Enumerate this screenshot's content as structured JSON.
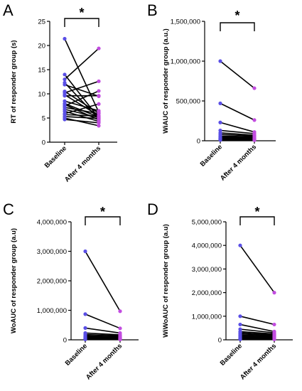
{
  "chart_data": [
    {
      "type": "scatter",
      "panel_label": "A",
      "ylabel": "RT of responder group (s)",
      "ylim": [
        0,
        25
      ],
      "yticks": [
        "0",
        "5",
        "10",
        "15",
        "20",
        "25"
      ],
      "categories": [
        "Baseline",
        "After 4 months"
      ],
      "significance": "*",
      "pairs": [
        [
          21.4,
          6.2
        ],
        [
          14.0,
          5.0
        ],
        [
          13.0,
          19.4
        ],
        [
          12.3,
          4.8
        ],
        [
          11.9,
          9.5
        ],
        [
          10.5,
          6.0
        ],
        [
          10.2,
          12.6
        ],
        [
          9.8,
          5.5
        ],
        [
          9.6,
          9.6
        ],
        [
          8.5,
          6.5
        ],
        [
          8.0,
          5.2
        ],
        [
          7.8,
          4.6
        ],
        [
          7.5,
          10.6
        ],
        [
          7.2,
          5.9
        ],
        [
          6.8,
          5.1
        ],
        [
          6.4,
          4.3
        ],
        [
          5.9,
          7.9
        ],
        [
          5.7,
          5.4
        ],
        [
          5.3,
          4.9
        ],
        [
          5.0,
          3.4
        ],
        [
          4.7,
          4.0
        ]
      ]
    },
    {
      "type": "scatter",
      "panel_label": "B",
      "ylabel": "WiAUC of responder group (a.u.)",
      "ylim": [
        0,
        1500000
      ],
      "yticks": [
        "0",
        "500,000",
        "1,000,000",
        "1,500,000"
      ],
      "categories": [
        "Baseline",
        "After 4 months"
      ],
      "significance": "*",
      "pairs": [
        [
          1000000,
          660000
        ],
        [
          470000,
          260000
        ],
        [
          230000,
          110000
        ],
        [
          130000,
          90000
        ],
        [
          100000,
          70000
        ],
        [
          80000,
          60000
        ],
        [
          60000,
          50000
        ],
        [
          50000,
          40000
        ],
        [
          40000,
          30000
        ],
        [
          30000,
          25000
        ],
        [
          25000,
          20000
        ],
        [
          20000,
          15000
        ],
        [
          15000,
          10000
        ],
        [
          10000,
          8000
        ]
      ]
    },
    {
      "type": "scatter",
      "panel_label": "C",
      "ylabel": "WoAUC of responder group (a.u)",
      "ylim": [
        0,
        4000000
      ],
      "yticks": [
        "0",
        "1,000,000",
        "2,000,000",
        "3,000,000",
        "4,000,000"
      ],
      "categories": [
        "Baseline",
        "After 4 months"
      ],
      "significance": "*",
      "pairs": [
        [
          3000000,
          970000
        ],
        [
          870000,
          390000
        ],
        [
          400000,
          230000
        ],
        [
          230000,
          170000
        ],
        [
          180000,
          140000
        ],
        [
          140000,
          110000
        ],
        [
          110000,
          90000
        ],
        [
          90000,
          70000
        ],
        [
          70000,
          60000
        ],
        [
          60000,
          50000
        ],
        [
          45000,
          40000
        ],
        [
          35000,
          30000
        ],
        [
          25000,
          20000
        ],
        [
          15000,
          12000
        ]
      ]
    },
    {
      "type": "scatter",
      "panel_label": "D",
      "ylabel": "WiWoAUC of responder group (a.u)",
      "ylim": [
        0,
        5000000
      ],
      "yticks": [
        "0",
        "1,000,000",
        "2,000,000",
        "3,000,000",
        "4,000,000",
        "5,000,000"
      ],
      "categories": [
        "Baseline",
        "After 4 months"
      ],
      "significance": "*",
      "pairs": [
        [
          4000000,
          2000000
        ],
        [
          1000000,
          650000
        ],
        [
          650000,
          350000
        ],
        [
          450000,
          300000
        ],
        [
          350000,
          250000
        ],
        [
          300000,
          220000
        ],
        [
          250000,
          190000
        ],
        [
          200000,
          160000
        ],
        [
          160000,
          130000
        ],
        [
          120000,
          100000
        ],
        [
          90000,
          80000
        ],
        [
          60000,
          50000
        ],
        [
          40000,
          35000
        ],
        [
          20000,
          18000
        ]
      ]
    }
  ],
  "colors": {
    "baseline_point": "#5a4fe6",
    "after_point": "#c24ce0",
    "line": "#000000",
    "axis": "#000000"
  }
}
